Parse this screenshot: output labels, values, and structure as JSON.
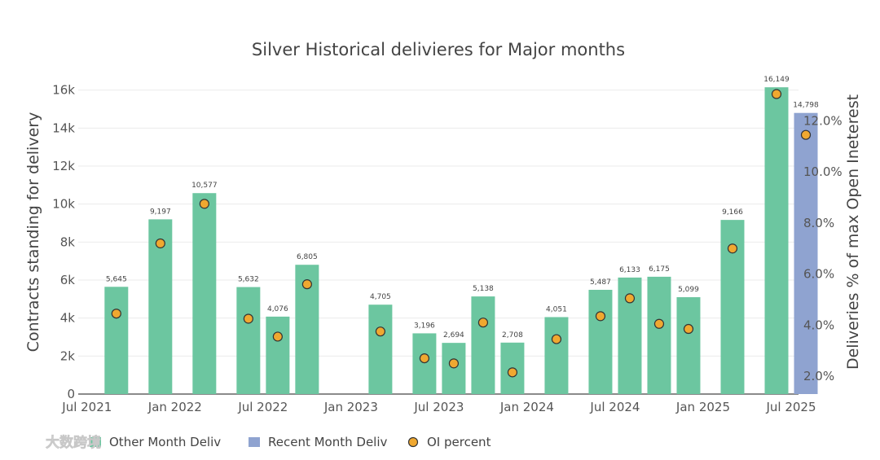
{
  "chart_data": {
    "type": "bar",
    "title": "Silver Historical delivieres for Major months",
    "ylabel": "Contracts standing for delivery",
    "y2label": "Deliveries % of max Open Ineterest",
    "ylim": [
      0,
      16800
    ],
    "y2lim": [
      1.3,
      13.8
    ],
    "yticks": [
      0,
      2000,
      4000,
      6000,
      8000,
      10000,
      12000,
      14000,
      16000
    ],
    "ytick_labels": [
      "0",
      "2k",
      "4k",
      "6k",
      "8k",
      "10k",
      "12k",
      "14k",
      "16k"
    ],
    "y2ticks": [
      2,
      4,
      6,
      8,
      10,
      12
    ],
    "y2tick_labels": [
      "2.0%",
      "4.0%",
      "6.0%",
      "8.0%",
      "10.0%",
      "12.0%"
    ],
    "x_range_months": [
      -0.6,
      48.5
    ],
    "xticks_months": [
      0,
      6,
      12,
      18,
      24,
      30,
      36,
      42,
      48
    ],
    "xtick_labels": [
      "Jul 2021",
      "Jan 2022",
      "Jul 2022",
      "Jan 2023",
      "Jul 2023",
      "Jan 2024",
      "Jul 2024",
      "Jan 2025",
      "Jul 2025"
    ],
    "grid": true,
    "series": [
      {
        "name": "Other Month Deliv",
        "type": "bar",
        "color": "#6cc6a0",
        "points": [
          {
            "month": 2,
            "value": 5645,
            "label": "5,645"
          },
          {
            "month": 5,
            "value": 9197,
            "label": "9,197"
          },
          {
            "month": 8,
            "value": 10577,
            "label": "10,577"
          },
          {
            "month": 11,
            "value": 5632,
            "label": "5,632"
          },
          {
            "month": 13,
            "value": 4076,
            "label": "4,076"
          },
          {
            "month": 15,
            "value": 6805,
            "label": "6,805"
          },
          {
            "month": 20,
            "value": 4705,
            "label": "4,705"
          },
          {
            "month": 23,
            "value": 3196,
            "label": "3,196"
          },
          {
            "month": 25,
            "value": 2694,
            "label": "2,694"
          },
          {
            "month": 27,
            "value": 5138,
            "label": "5,138"
          },
          {
            "month": 29,
            "value": 2708,
            "label": "2,708"
          },
          {
            "month": 32,
            "value": 4051,
            "label": "4,051"
          },
          {
            "month": 35,
            "value": 5487,
            "label": "5,487"
          },
          {
            "month": 37,
            "value": 6133,
            "label": "6,133"
          },
          {
            "month": 39,
            "value": 6175,
            "label": "6,175"
          },
          {
            "month": 41,
            "value": 5099,
            "label": "5,099"
          },
          {
            "month": 44,
            "value": 9166,
            "label": "9,166"
          },
          {
            "month": 47,
            "value": 16149,
            "label": "16,149"
          }
        ]
      },
      {
        "name": "Recent Month Deliv",
        "type": "bar",
        "color": "#8fa3d0",
        "points": [
          {
            "month": 49,
            "value": 14798,
            "label": "14,798"
          }
        ]
      },
      {
        "name": "OI percent",
        "type": "scatter",
        "axis": "y2",
        "color": "#f0a830",
        "points": [
          {
            "month": 2,
            "value": 4.45
          },
          {
            "month": 5,
            "value": 7.2
          },
          {
            "month": 8,
            "value": 8.75
          },
          {
            "month": 11,
            "value": 4.25
          },
          {
            "month": 13,
            "value": 3.55
          },
          {
            "month": 15,
            "value": 5.6
          },
          {
            "month": 20,
            "value": 3.75
          },
          {
            "month": 23,
            "value": 2.7
          },
          {
            "month": 25,
            "value": 2.5
          },
          {
            "month": 27,
            "value": 4.1
          },
          {
            "month": 29,
            "value": 2.15
          },
          {
            "month": 32,
            "value": 3.45
          },
          {
            "month": 35,
            "value": 4.35
          },
          {
            "month": 37,
            "value": 5.05
          },
          {
            "month": 39,
            "value": 4.05
          },
          {
            "month": 41,
            "value": 3.85
          },
          {
            "month": 44,
            "value": 7.0
          },
          {
            "month": 47,
            "value": 13.05
          },
          {
            "month": 49,
            "value": 11.45
          }
        ]
      }
    ],
    "legend": {
      "position": "bottom-left",
      "items": [
        "Other Month Deliv",
        "Recent Month Deliv",
        "OI percent"
      ]
    }
  },
  "watermark": "大数跨境"
}
